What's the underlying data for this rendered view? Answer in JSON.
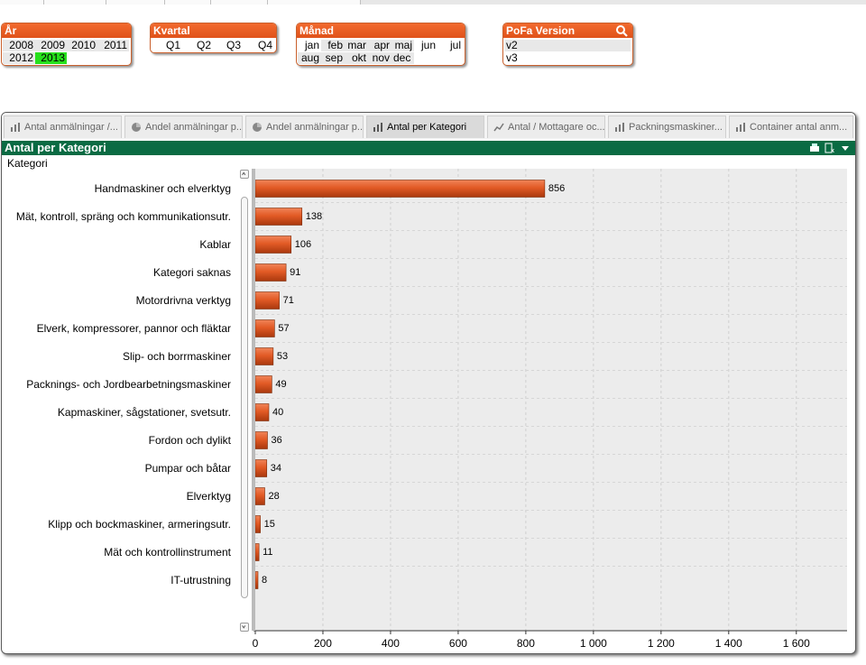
{
  "filters": {
    "year": {
      "title": "År",
      "values": [
        "2008",
        "2009",
        "2010",
        "2011",
        "2012",
        "2013"
      ],
      "selected": "2013"
    },
    "quarter": {
      "title": "Kvartal",
      "values": [
        "Q1",
        "Q2",
        "Q3",
        "Q4"
      ]
    },
    "month": {
      "title": "Månad",
      "values": [
        "jan",
        "feb",
        "mar",
        "apr",
        "maj",
        "jun",
        "jul",
        "aug",
        "sep",
        "okt",
        "nov",
        "dec"
      ]
    },
    "pofa": {
      "title": "PoFa Version",
      "values": [
        "v2",
        "v3"
      ]
    }
  },
  "tabs": [
    {
      "label": "Antal anmälningar /...",
      "icon": "bar-chart-icon"
    },
    {
      "label": "Andel anmälningar p...",
      "icon": "pie-chart-icon"
    },
    {
      "label": "Andel anmälningar p...",
      "icon": "pie-chart-icon"
    },
    {
      "label": "Antal per Kategori",
      "icon": "bar-chart-icon",
      "active": true
    },
    {
      "label": "Antal / Mottagare oc...",
      "icon": "line-chart-icon"
    },
    {
      "label": "Packningsmaskiner...",
      "icon": "bar-chart-icon"
    },
    {
      "label": "Container antal anm...",
      "icon": "bar-chart-icon"
    }
  ],
  "colors": {
    "accent": "#e8602a",
    "caption": "#0a6b43",
    "bar": "#d9501e",
    "selected": "#27e01c"
  },
  "chart_data": {
    "type": "bar",
    "orientation": "horizontal",
    "title": "Antal per Kategori",
    "dimension_label": "Kategori",
    "categories": [
      "Handmaskiner och elverktyg",
      "Mät, kontroll, spräng och kommunikationsutr.",
      "Kablar",
      "Kategori saknas",
      "Motordrivna verktyg",
      "Elverk, kompressorer, pannor och fläktar",
      "Slip- och borrmaskiner",
      "Packnings- och Jordbearbetningsmaskiner",
      "Kapmaskiner, sågstationer, svetsutr.",
      "Fordon och dylikt",
      "Pumpar och båtar",
      "Elverktyg",
      "Klipp och bockmaskiner, armeringsutr.",
      "Mät och kontrollinstrument",
      "IT-utrustning"
    ],
    "values": [
      856,
      138,
      106,
      91,
      71,
      57,
      53,
      49,
      40,
      36,
      34,
      28,
      15,
      11,
      8
    ],
    "xlim": [
      0,
      1750
    ],
    "xticks": [
      0,
      200,
      400,
      600,
      800,
      1000,
      1200,
      1400,
      1600
    ],
    "xtick_labels": [
      "0",
      "200",
      "400",
      "600",
      "800",
      "1 000",
      "1 200",
      "1 400",
      "1 600"
    ],
    "grid": true
  }
}
